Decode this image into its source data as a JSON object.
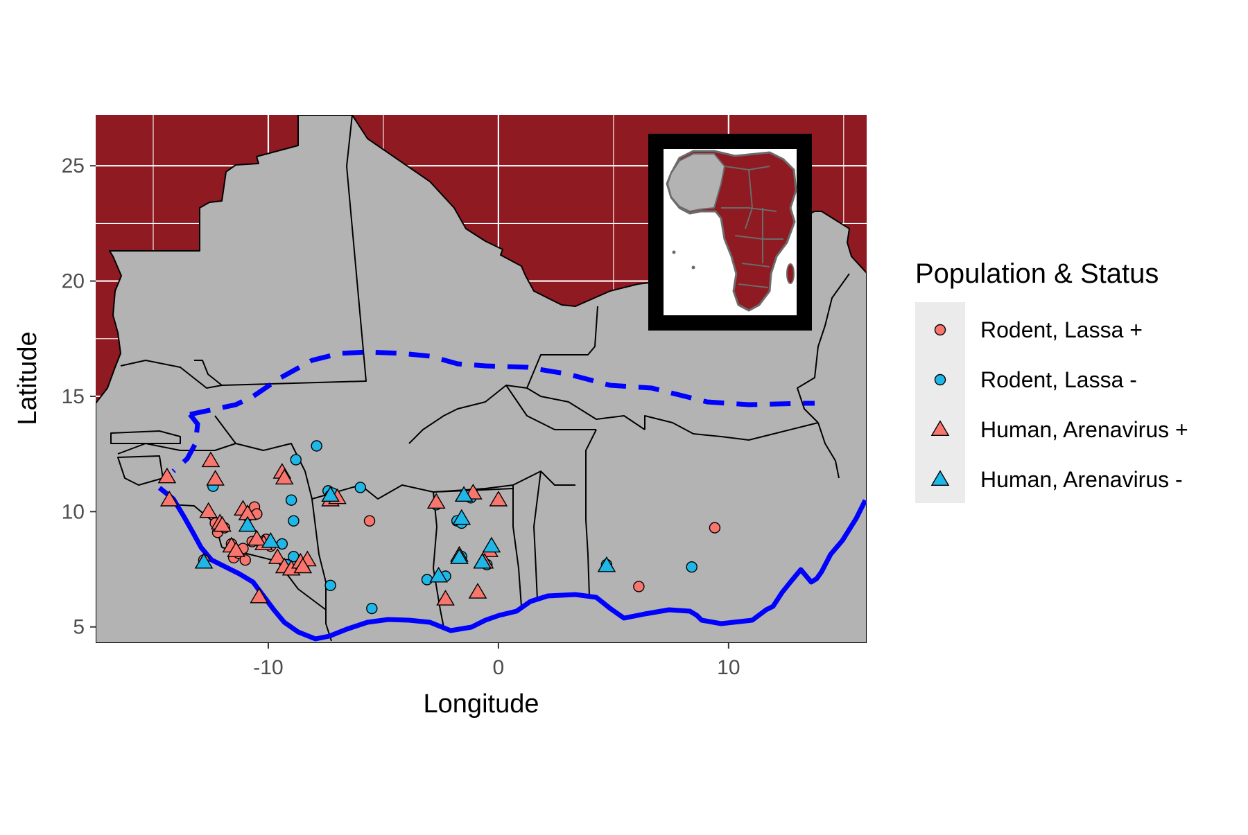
{
  "chart_data": {
    "type": "scatter",
    "title": "",
    "xlabel": "Longitude",
    "ylabel": "Latitude",
    "xlim": [
      -17.5,
      16.0
    ],
    "ylim": [
      4.3,
      27.2
    ],
    "x_ticks": [
      -10,
      0,
      10
    ],
    "y_ticks": [
      5,
      10,
      15,
      20,
      25
    ],
    "x_tick_labels": [
      "-10",
      "0",
      "10"
    ],
    "y_tick_labels": [
      "5",
      "10",
      "15",
      "20",
      "25"
    ],
    "grid": true,
    "colors": {
      "panel_background": "#8f1a21",
      "land": "#b3b3b3",
      "border": "#000000",
      "boundary_line": "#0000ff",
      "positive": "#f8766d",
      "negative": "#1fb6e8",
      "inset_frame": "#000000"
    },
    "legend": {
      "title": "Population & Status",
      "position": "right",
      "entries": [
        {
          "label": "Rodent, Lassa +",
          "shape": "circle",
          "color": "#f8766d"
        },
        {
          "label": "Rodent, Lassa -",
          "shape": "circle",
          "color": "#1fb6e8"
        },
        {
          "label": "Human, Arenavirus +",
          "shape": "triangle",
          "color": "#f8766d"
        },
        {
          "label": "Human, Arenavirus -",
          "shape": "triangle",
          "color": "#1fb6e8"
        }
      ]
    },
    "series": [
      {
        "name": "Rodent, Lassa +",
        "shape": "circle",
        "points": [
          [
            -12.3,
            9.5
          ],
          [
            -12.2,
            9.1
          ],
          [
            -11.9,
            9.3
          ],
          [
            -11.5,
            8.0
          ],
          [
            -11.3,
            8.2
          ],
          [
            -11.0,
            7.9
          ],
          [
            -11.1,
            8.4
          ],
          [
            -10.8,
            10.0
          ],
          [
            -10.6,
            10.2
          ],
          [
            -10.9,
            9.8
          ],
          [
            -10.5,
            9.9
          ],
          [
            -10.3,
            8.6
          ],
          [
            -10.1,
            8.8
          ],
          [
            -9.9,
            8.5
          ],
          [
            -11.6,
            8.6
          ],
          [
            -12.8,
            7.9
          ],
          [
            -10.7,
            8.7
          ],
          [
            -7.3,
            10.5
          ],
          [
            -5.6,
            9.6
          ],
          [
            6.1,
            6.75
          ],
          [
            9.4,
            9.3
          ]
        ]
      },
      {
        "name": "Rodent, Lassa -",
        "shape": "circle",
        "points": [
          [
            -7.9,
            12.85
          ],
          [
            -8.8,
            12.25
          ],
          [
            -12.4,
            11.1
          ],
          [
            -7.4,
            10.9
          ],
          [
            -7.3,
            10.7
          ],
          [
            -7.2,
            10.8
          ],
          [
            -6.0,
            11.05
          ],
          [
            -9.0,
            10.5
          ],
          [
            -8.9,
            9.6
          ],
          [
            -9.4,
            8.6
          ],
          [
            -8.9,
            8.05
          ],
          [
            -9.2,
            7.7
          ],
          [
            -7.3,
            6.8
          ],
          [
            -5.5,
            5.8
          ],
          [
            -3.1,
            7.05
          ],
          [
            -2.7,
            10.3
          ],
          [
            -1.2,
            10.6
          ],
          [
            -1.8,
            9.6
          ],
          [
            -1.6,
            9.5
          ],
          [
            -1.6,
            8.05
          ],
          [
            -0.5,
            7.7
          ],
          [
            -0.3,
            8.4
          ],
          [
            -2.3,
            7.2
          ],
          [
            4.7,
            7.7
          ],
          [
            8.4,
            7.6
          ]
        ]
      },
      {
        "name": "Human, Arenavirus +",
        "shape": "triangle",
        "points": [
          [
            -14.4,
            11.5
          ],
          [
            -14.3,
            10.5
          ],
          [
            -12.5,
            12.2
          ],
          [
            -12.3,
            11.4
          ],
          [
            -12.1,
            9.5
          ],
          [
            -12.6,
            10.0
          ],
          [
            -12.0,
            9.4
          ],
          [
            -11.1,
            10.1
          ],
          [
            -10.9,
            9.9
          ],
          [
            -11.6,
            8.5
          ],
          [
            -11.4,
            8.3
          ],
          [
            -10.2,
            8.6
          ],
          [
            -10.5,
            8.8
          ],
          [
            -9.4,
            11.7
          ],
          [
            -9.3,
            11.45
          ],
          [
            -9.6,
            8.0
          ],
          [
            -9.3,
            7.6
          ],
          [
            -9.0,
            7.5
          ],
          [
            -8.6,
            7.8
          ],
          [
            -8.3,
            7.9
          ],
          [
            -8.5,
            7.6
          ],
          [
            -10.4,
            6.3
          ],
          [
            -7.3,
            10.5
          ],
          [
            -7.0,
            10.6
          ],
          [
            -2.7,
            10.4
          ],
          [
            -1.1,
            10.8
          ],
          [
            0.0,
            10.5
          ],
          [
            -2.3,
            6.2
          ],
          [
            -0.9,
            6.5
          ],
          [
            -1.7,
            8.1
          ],
          [
            -0.4,
            8.3
          ],
          [
            -0.6,
            7.8
          ]
        ]
      },
      {
        "name": "Human, Arenavirus -",
        "shape": "triangle",
        "points": [
          [
            -12.8,
            7.8
          ],
          [
            -10.9,
            9.4
          ],
          [
            -9.9,
            8.7
          ],
          [
            -7.3,
            10.7
          ],
          [
            -1.5,
            10.7
          ],
          [
            -1.6,
            9.7
          ],
          [
            -0.7,
            7.8
          ],
          [
            -2.6,
            7.2
          ],
          [
            -1.7,
            8.0
          ],
          [
            -0.3,
            8.5
          ],
          [
            4.7,
            7.65
          ]
        ]
      }
    ]
  }
}
